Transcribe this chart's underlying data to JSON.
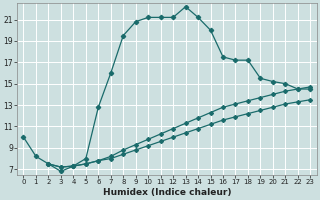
{
  "xlabel": "Humidex (Indice chaleur)",
  "ylabel": "",
  "bg_color": "#cde0e0",
  "grid_color": "#ffffff",
  "line_color": "#1a6b6b",
  "xlim": [
    -0.5,
    23.5
  ],
  "ylim": [
    6.5,
    22.5
  ],
  "xticks": [
    0,
    1,
    2,
    3,
    4,
    5,
    6,
    7,
    8,
    9,
    10,
    11,
    12,
    13,
    14,
    15,
    16,
    17,
    18,
    19,
    20,
    21,
    22,
    23
  ],
  "yticks": [
    7,
    9,
    11,
    13,
    15,
    17,
    19,
    21
  ],
  "curve1_x": [
    0,
    1,
    2,
    3,
    4,
    5,
    6,
    7,
    8,
    9,
    10,
    11,
    12,
    13,
    14,
    15,
    16,
    17,
    18,
    19,
    20,
    21,
    22,
    23
  ],
  "curve1_y": [
    10.0,
    8.2,
    7.5,
    6.8,
    7.3,
    8.0,
    12.8,
    16.0,
    19.5,
    20.8,
    21.2,
    21.2,
    21.2,
    22.2,
    21.2,
    20.0,
    17.5,
    17.2,
    17.2,
    15.5,
    15.2,
    15.0,
    14.5,
    14.5
  ],
  "line2_x": [
    2,
    3,
    4,
    5,
    6,
    7,
    8,
    9,
    10,
    11,
    12,
    13,
    14,
    15,
    16,
    17,
    18,
    19,
    20,
    21,
    22,
    23
  ],
  "line2_y": [
    7.5,
    7.2,
    7.3,
    7.5,
    7.8,
    8.2,
    8.8,
    9.3,
    9.8,
    10.3,
    10.8,
    11.3,
    11.8,
    12.3,
    12.8,
    13.1,
    13.4,
    13.7,
    14.0,
    14.3,
    14.5,
    14.7
  ],
  "line3_x": [
    2,
    3,
    4,
    5,
    6,
    7,
    8,
    9,
    10,
    11,
    12,
    13,
    14,
    15,
    16,
    17,
    18,
    19,
    20,
    21,
    22,
    23
  ],
  "line3_y": [
    7.5,
    7.2,
    7.3,
    7.5,
    7.8,
    8.0,
    8.4,
    8.8,
    9.2,
    9.6,
    10.0,
    10.4,
    10.8,
    11.2,
    11.6,
    11.9,
    12.2,
    12.5,
    12.8,
    13.1,
    13.3,
    13.5
  ]
}
